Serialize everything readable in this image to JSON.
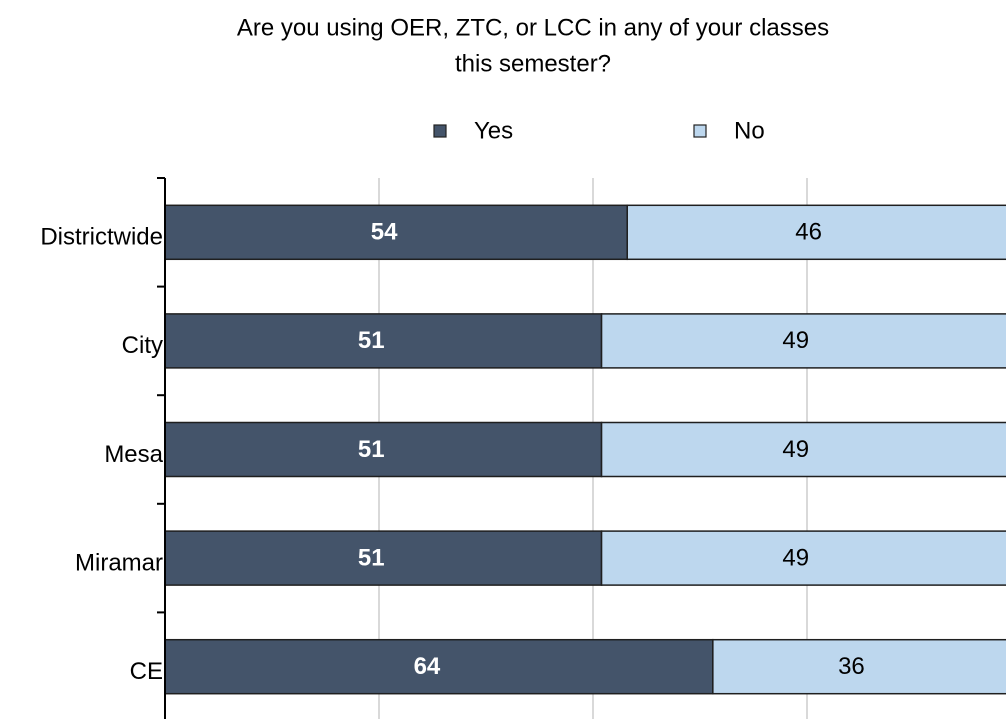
{
  "chart_data": {
    "type": "stacked-bar-horizontal",
    "title": [
      "Are you using OER, ZTC, or LCC in any of your classes",
      "this semester?"
    ],
    "categories": [
      "Districtwide",
      "City",
      "Mesa",
      "Miramar",
      "CE"
    ],
    "series": [
      {
        "name": "Yes",
        "color": "#44546a",
        "values": [
          54,
          51,
          51,
          51,
          64
        ]
      },
      {
        "name": "No",
        "color": "#bdd7ee",
        "values": [
          46,
          49,
          49,
          49,
          36
        ]
      }
    ],
    "xlim": [
      0,
      100
    ],
    "xticks": [
      0,
      25,
      50,
      75,
      100
    ],
    "grid": true,
    "legend": "top"
  }
}
